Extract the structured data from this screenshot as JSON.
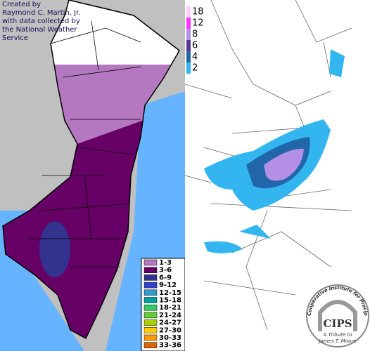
{
  "left_map": {
    "credit": [
      "Created by",
      "Raymond C. Martin, Jr.",
      "with data collected by",
      "the National Weather",
      "Service"
    ],
    "legend": [
      {
        "label": "1-3",
        "color": "#b378bf"
      },
      {
        "label": "3-6",
        "color": "#660066"
      },
      {
        "label": "6-9",
        "color": "#33338f"
      },
      {
        "label": "9-12",
        "color": "#3344cc"
      },
      {
        "label": "12-15",
        "color": "#3399cc"
      },
      {
        "label": "15-18",
        "color": "#00a0a0"
      },
      {
        "label": "18-21",
        "color": "#33cc66"
      },
      {
        "label": "21-24",
        "color": "#66cc33"
      },
      {
        "label": "24-27",
        "color": "#aacc00"
      },
      {
        "label": "27-30",
        "color": "#ffcc00"
      },
      {
        "label": "30-33",
        "color": "#ff9900"
      },
      {
        "label": "33-36",
        "color": "#dd6600"
      }
    ]
  },
  "right_map": {
    "legend": [
      {
        "label": "18",
        "color": "#ffccff"
      },
      {
        "label": "12",
        "color": "#ff33ff"
      },
      {
        "label": "8",
        "color": "#b38fe6"
      },
      {
        "label": "6",
        "color": "#553399"
      },
      {
        "label": "4",
        "color": "#2266aa"
      },
      {
        "label": "2",
        "color": "#33b5f0"
      }
    ],
    "logo": {
      "name": "CIPS",
      "arc_text": "Cooperative Institute for Precipitation Systems",
      "tribute": [
        "A Tribute to",
        "James T. Moore"
      ]
    }
  }
}
